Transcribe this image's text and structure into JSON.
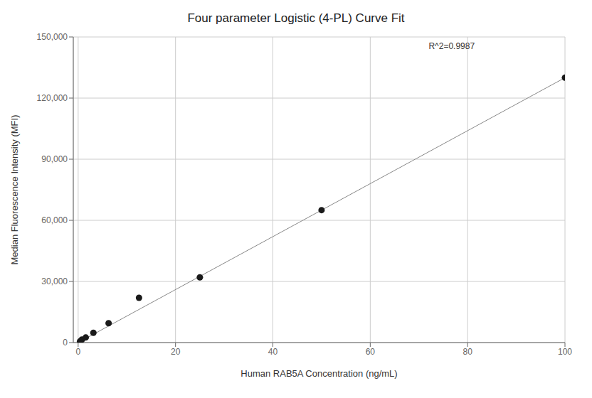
{
  "chart_data": {
    "type": "scatter",
    "title": "Four parameter Logistic (4-PL) Curve Fit",
    "xlabel": "Human RAB5A Concentration (ng/mL)",
    "ylabel": "Median Fluorescence Intensity (MFI)",
    "series": [
      {
        "type": "line",
        "x": [
          0,
          100
        ],
        "values": [
          0,
          130000
        ],
        "color": "#888888"
      },
      {
        "type": "scatter",
        "x": [
          0.39,
          0.78,
          1.56,
          3.13,
          6.25,
          12.5,
          25.0,
          50.0,
          100.0
        ],
        "values": [
          600,
          1500,
          2500,
          4800,
          9500,
          22000,
          32000,
          65000,
          130000
        ],
        "color": "#1a1a1a"
      }
    ],
    "annotations": [
      {
        "text": "R^2=0.9987",
        "x": 72,
        "y": 143000
      }
    ],
    "xlim": [
      -1,
      100
    ],
    "ylim": [
      0,
      150000
    ],
    "xticks": [
      0,
      20,
      40,
      60,
      80,
      100
    ],
    "yticks": [
      0,
      {
        "value": 30000,
        "label": "30,000"
      },
      {
        "value": 60000,
        "label": "60,000"
      },
      {
        "value": 90000,
        "label": "90,000"
      },
      {
        "value": 120000,
        "label": "120,000"
      },
      {
        "value": 150000,
        "label": "150,000"
      }
    ],
    "grid": true
  }
}
